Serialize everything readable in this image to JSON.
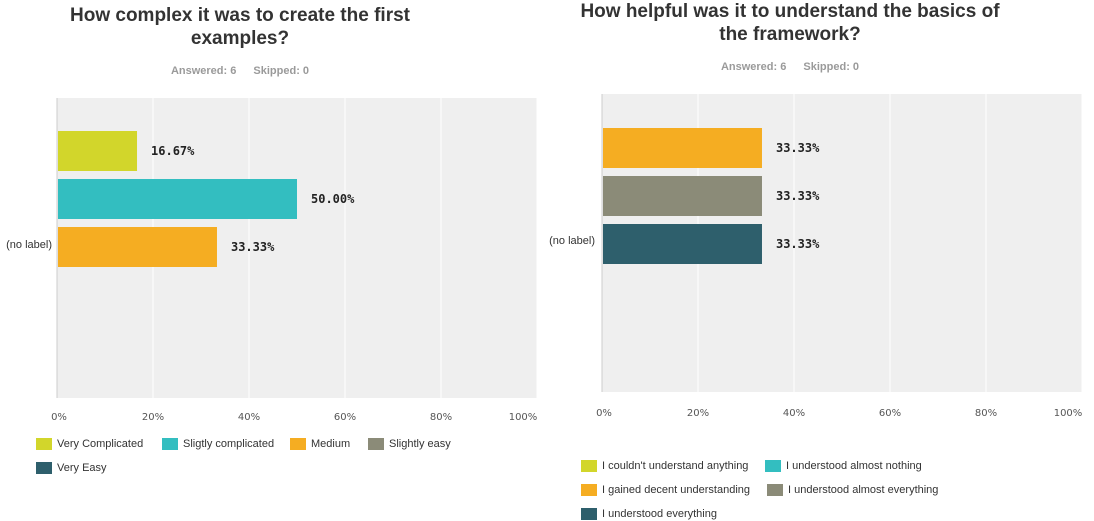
{
  "chart_data": [
    {
      "type": "bar",
      "orientation": "horizontal",
      "title": "How complex it was to create the first examples?",
      "answered": "Answered: 6",
      "skipped": "Skipped: 0",
      "categories": [
        "(no label)"
      ],
      "series": [
        {
          "name": "Very Complicated",
          "values": [
            16.67
          ],
          "label": "16.67%",
          "color": "#d2d62b"
        },
        {
          "name": "Sligtly complicated",
          "values": [
            50.0
          ],
          "label": "50.00%",
          "color": "#33bec0"
        },
        {
          "name": "Medium",
          "values": [
            33.33
          ],
          "label": "33.33%",
          "color": "#f5ad22"
        },
        {
          "name": "Slightly easy",
          "values": [
            0
          ],
          "label": "",
          "color": "#8b8b78"
        },
        {
          "name": "Very Easy",
          "values": [
            0
          ],
          "label": "",
          "color": "#2e5f6c"
        }
      ],
      "xlim": [
        0,
        100
      ],
      "ticks": [
        "0%",
        "20%",
        "40%",
        "60%",
        "80%",
        "100%"
      ],
      "grid": true,
      "legend": "bottom"
    },
    {
      "type": "bar",
      "orientation": "horizontal",
      "title": "How helpful was it to understand the basics of the framework?",
      "answered": "Answered: 6",
      "skipped": "Skipped: 0",
      "categories": [
        "(no label)"
      ],
      "series": [
        {
          "name": "I couldn't understand anything",
          "values": [
            0
          ],
          "label": "",
          "color": "#d2d62b"
        },
        {
          "name": "I understood almost nothing",
          "values": [
            0
          ],
          "label": "",
          "color": "#33bec0"
        },
        {
          "name": "I gained decent understanding",
          "values": [
            33.33
          ],
          "label": "33.33%",
          "color": "#f5ad22"
        },
        {
          "name": "I understood almost everything",
          "values": [
            33.33
          ],
          "label": "33.33%",
          "color": "#8b8b78"
        },
        {
          "name": "I understood everything",
          "values": [
            33.33
          ],
          "label": "33.33%",
          "color": "#2e5f6c"
        }
      ],
      "xlim": [
        0,
        100
      ],
      "ticks": [
        "0%",
        "20%",
        "40%",
        "60%",
        "80%",
        "100%"
      ],
      "grid": true,
      "legend": "bottom"
    }
  ]
}
